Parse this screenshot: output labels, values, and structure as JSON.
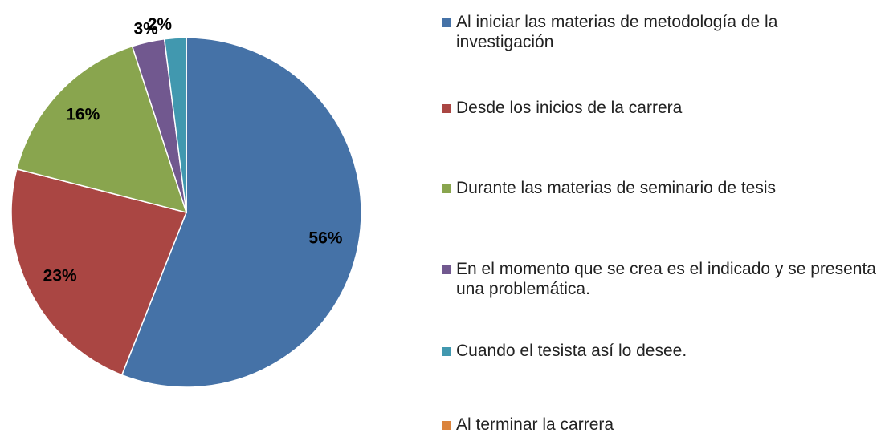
{
  "chart_data": {
    "type": "pie",
    "categories": [
      "Al iniciar las materias de metodología de la investigación",
      "Desde los inicios de la carrera",
      "Durante las materias de seminario de tesis",
      "En el momento que se crea es el indicado y se presenta una problemática.",
      "Cuando el tesista así lo desee.",
      "Al terminar la carrera"
    ],
    "values": [
      56,
      23,
      16,
      3,
      2,
      0
    ],
    "value_labels": [
      "56%",
      "23%",
      "16%",
      "3%",
      "2%",
      null
    ],
    "colors": [
      "#4572A7",
      "#AA4643",
      "#89A54E",
      "#71588F",
      "#4198AF",
      "#DB843D"
    ],
    "legend": "right"
  }
}
